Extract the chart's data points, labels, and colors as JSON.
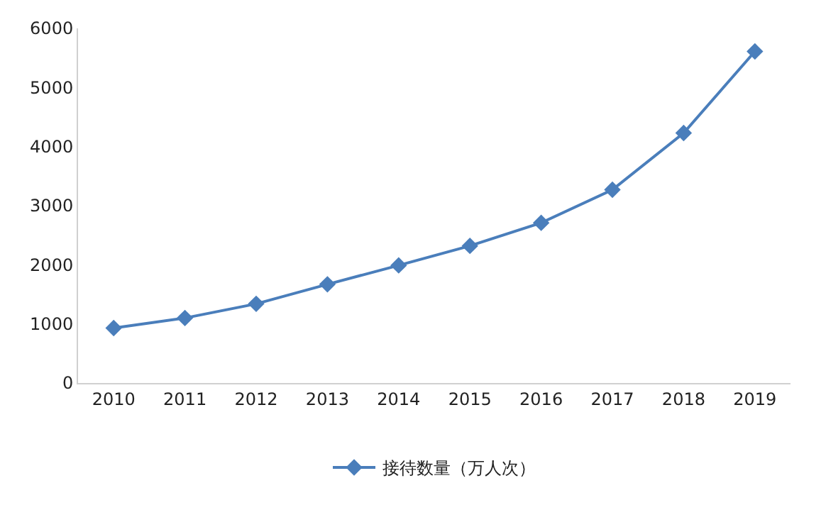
{
  "chart_data": {
    "type": "line",
    "categories": [
      "2010",
      "2011",
      "2012",
      "2013",
      "2014",
      "2015",
      "2016",
      "2017",
      "2018",
      "2019"
    ],
    "series": [
      {
        "name": "接待数量（万人次）",
        "color": "#4a7ebb",
        "values": [
          930,
          1100,
          1340,
          1670,
          1990,
          2320,
          2710,
          3270,
          4230,
          5610
        ]
      }
    ],
    "ylim": [
      0,
      6000
    ],
    "yticks": [
      0,
      1000,
      2000,
      3000,
      4000,
      5000,
      6000
    ],
    "legend": "bottom",
    "marker": "diamond",
    "line_style": "solid"
  }
}
